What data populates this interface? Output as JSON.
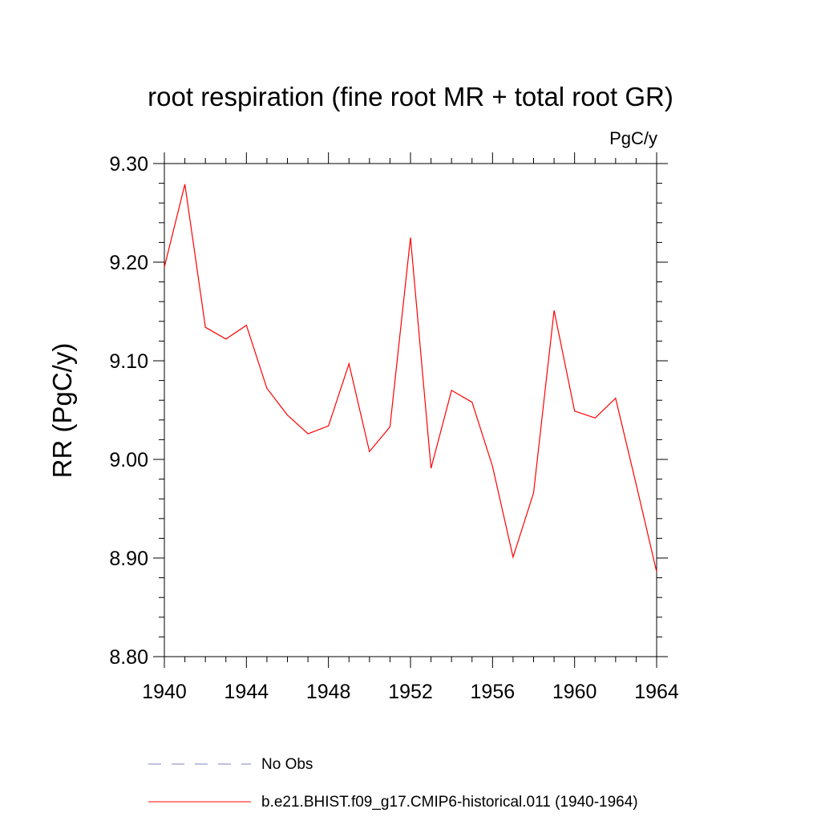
{
  "chart_data": {
    "type": "line",
    "title": "root respiration (fine root MR + total root GR)",
    "units_label": "PgC/y",
    "ylabel": "RR  (PgC/y)",
    "xlabel": "",
    "xlim": [
      1940,
      1964
    ],
    "ylim": [
      8.8,
      9.3
    ],
    "x_ticks": [
      1940,
      1944,
      1948,
      1952,
      1956,
      1960,
      1964
    ],
    "x_tick_labels": [
      "1940",
      "1944",
      "1948",
      "1952",
      "1956",
      "1960",
      "1964"
    ],
    "y_ticks": [
      8.8,
      8.9,
      9.0,
      9.1,
      9.2,
      9.3
    ],
    "y_tick_labels": [
      "8.80",
      "8.90",
      "9.00",
      "9.10",
      "9.20",
      "9.30"
    ],
    "grid": false,
    "legend_position": "bottom",
    "series": [
      {
        "name": "b.e21.BHIST.f09_g17.CMIP6-historical.011 (1940-1964)",
        "color": "#ff0000",
        "style": "solid",
        "x": [
          1940,
          1941,
          1942,
          1943,
          1944,
          1945,
          1946,
          1947,
          1948,
          1949,
          1950,
          1951,
          1952,
          1953,
          1954,
          1955,
          1956,
          1957,
          1958,
          1959,
          1960,
          1961,
          1962,
          1963,
          1964
        ],
        "values": [
          9.195,
          9.279,
          9.134,
          9.122,
          9.136,
          9.072,
          9.045,
          9.026,
          9.034,
          9.097,
          9.008,
          9.033,
          9.225,
          8.991,
          9.07,
          9.058,
          8.993,
          8.901,
          8.966,
          9.151,
          9.049,
          9.042,
          9.062,
          8.975,
          8.886
        ]
      }
    ],
    "legend": [
      {
        "label": "No Obs",
        "color": "#8080c0",
        "style": "dashed"
      },
      {
        "label": "b.e21.BHIST.f09_g17.CMIP6-historical.011 (1940-1964)",
        "color": "#ff0000",
        "style": "solid"
      }
    ]
  }
}
